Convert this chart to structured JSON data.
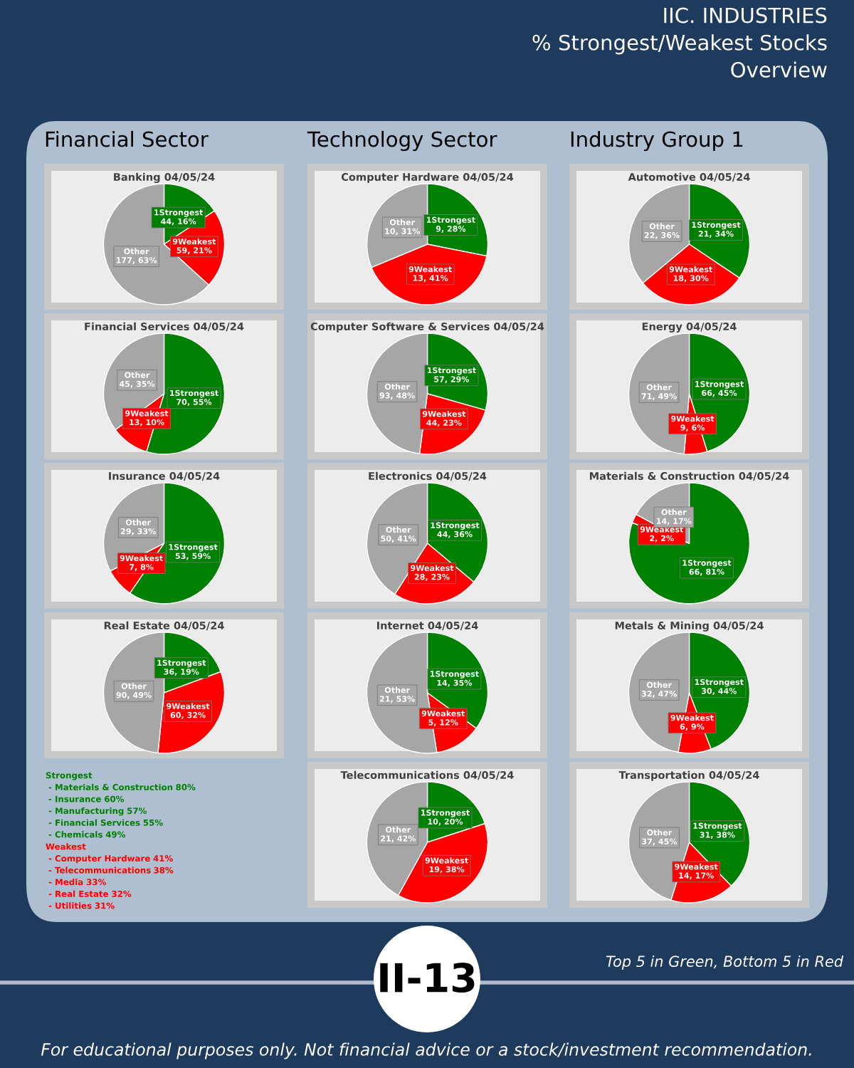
{
  "chart_data": [
    {
      "type": "other",
      "title": "IIC. INDUSTRIES\n% Strongest/Weakest Stocks\nOverview",
      "annotations": [
        "II-13",
        "Top 5 in Green, Bottom 5 in Red",
        "For educational purposes only. Not financial advice or a stock/investment recommendation."
      ]
    },
    {
      "type": "pie",
      "subtitle": "Financial Sector",
      "title": "Banking 04/05/24",
      "categories": [
        "1Strongest",
        "9Weakest",
        "Other"
      ],
      "values": [
        44,
        59,
        177
      ],
      "colors": [
        "#008000",
        "#ff0000",
        "#a6a6a6"
      ],
      "value_labels": [
        "44, 16%",
        "59, 21%",
        "177, 63%"
      ]
    },
    {
      "type": "pie",
      "title": "Financial Services 04/05/24",
      "categories": [
        "1Strongest",
        "9Weakest",
        "Other"
      ],
      "values": [
        70,
        13,
        45
      ],
      "colors": [
        "#008000",
        "#ff0000",
        "#a6a6a6"
      ],
      "value_labels": [
        "70, 55%",
        "13, 10%",
        "45, 35%"
      ]
    },
    {
      "type": "pie",
      "title": "Insurance 04/05/24",
      "categories": [
        "1Strongest",
        "9Weakest",
        "Other"
      ],
      "values": [
        53,
        7,
        29
      ],
      "colors": [
        "#008000",
        "#ff0000",
        "#a6a6a6"
      ],
      "value_labels": [
        "53, 59%",
        "7, 8%",
        "29, 33%"
      ]
    },
    {
      "type": "pie",
      "title": "Real Estate 04/05/24",
      "categories": [
        "1Strongest",
        "9Weakest",
        "Other"
      ],
      "values": [
        36,
        60,
        90
      ],
      "colors": [
        "#008000",
        "#ff0000",
        "#a6a6a6"
      ],
      "value_labels": [
        "36, 19%",
        "60, 32%",
        "90, 49%"
      ]
    },
    {
      "type": "other",
      "categories": [
        "- Materials & Construction",
        "- Insurance",
        "- Manufacturing",
        "- Financial Services",
        "- Chemicals"
      ],
      "series": [
        {
          "name": "Strongest",
          "color": "#008000",
          "values": [
            80,
            60,
            57,
            55,
            49
          ],
          "value_labels": [
            "80%",
            "60%",
            "57%",
            "55%",
            "49%"
          ]
        }
      ]
    },
    {
      "type": "other",
      "categories": [
        "- Computer Hardware",
        "- Telecommunications",
        "- Media",
        "- Real Estate",
        "- Utilities"
      ],
      "series": [
        {
          "name": "Weakest",
          "color": "#ff0000",
          "values": [
            41,
            38,
            33,
            32,
            31
          ],
          "value_labels": [
            "41%",
            "38%",
            "33%",
            "32%",
            "31%"
          ]
        }
      ]
    },
    {
      "type": "pie",
      "subtitle": "Technology Sector",
      "title": "Computer Hardware 04/05/24",
      "categories": [
        "1Strongest",
        "9Weakest",
        "Other"
      ],
      "values": [
        9,
        13,
        10
      ],
      "colors": [
        "#008000",
        "#ff0000",
        "#a6a6a6"
      ],
      "value_labels": [
        "9, 28%",
        "13, 41%",
        "10, 31%"
      ]
    },
    {
      "type": "pie",
      "title": "Computer Software & Services 04/05/24",
      "categories": [
        "1Strongest",
        "9Weakest",
        "Other"
      ],
      "values": [
        57,
        44,
        93
      ],
      "colors": [
        "#008000",
        "#ff0000",
        "#a6a6a6"
      ],
      "value_labels": [
        "57, 29%",
        "44, 23%",
        "93, 48%"
      ]
    },
    {
      "type": "pie",
      "title": "Electronics 04/05/24",
      "categories": [
        "1Strongest",
        "9Weakest",
        "Other"
      ],
      "values": [
        44,
        28,
        50
      ],
      "colors": [
        "#008000",
        "#ff0000",
        "#a6a6a6"
      ],
      "value_labels": [
        "44, 36%",
        "28, 23%",
        "50, 41%"
      ]
    },
    {
      "type": "pie",
      "title": "Internet 04/05/24",
      "categories": [
        "1Strongest",
        "9Weakest",
        "Other"
      ],
      "values": [
        14,
        5,
        21
      ],
      "colors": [
        "#008000",
        "#ff0000",
        "#a6a6a6"
      ],
      "value_labels": [
        "14, 35%",
        "5, 12%",
        "21, 53%"
      ]
    },
    {
      "type": "pie",
      "title": "Telecommunications 04/05/24",
      "categories": [
        "1Strongest",
        "9Weakest",
        "Other"
      ],
      "values": [
        10,
        19,
        21
      ],
      "colors": [
        "#008000",
        "#ff0000",
        "#a6a6a6"
      ],
      "value_labels": [
        "10, 20%",
        "19, 38%",
        "21, 42%"
      ]
    },
    {
      "type": "pie",
      "subtitle": "Industry Group 1",
      "title": "Automotive 04/05/24",
      "categories": [
        "1Strongest",
        "9Weakest",
        "Other"
      ],
      "values": [
        21,
        18,
        22
      ],
      "colors": [
        "#008000",
        "#ff0000",
        "#a6a6a6"
      ],
      "value_labels": [
        "21, 34%",
        "18, 30%",
        "22, 36%"
      ]
    },
    {
      "type": "pie",
      "title": "Energy 04/05/24",
      "categories": [
        "1Strongest",
        "9Weakest",
        "Other"
      ],
      "values": [
        66,
        9,
        71
      ],
      "colors": [
        "#008000",
        "#ff0000",
        "#a6a6a6"
      ],
      "value_labels": [
        "66, 45%",
        "9, 6%",
        "71, 49%"
      ]
    },
    {
      "type": "pie",
      "title": "Materials & Construction 04/05/24",
      "categories": [
        "1Strongest",
        "9Weakest",
        "Other"
      ],
      "values": [
        66,
        2,
        14
      ],
      "colors": [
        "#008000",
        "#ff0000",
        "#a6a6a6"
      ],
      "value_labels": [
        "66, 81%",
        "2, 2%",
        "14, 17%"
      ]
    },
    {
      "type": "pie",
      "title": "Metals & Mining 04/05/24",
      "categories": [
        "1Strongest",
        "9Weakest",
        "Other"
      ],
      "values": [
        30,
        6,
        32
      ],
      "colors": [
        "#008000",
        "#ff0000",
        "#a6a6a6"
      ],
      "value_labels": [
        "30, 44%",
        "6, 9%",
        "32, 47%"
      ]
    },
    {
      "type": "pie",
      "title": "Transportation 04/05/24",
      "categories": [
        "1Strongest",
        "9Weakest",
        "Other"
      ],
      "values": [
        31,
        14,
        37
      ],
      "colors": [
        "#008000",
        "#ff0000",
        "#a6a6a6"
      ],
      "value_labels": [
        "31, 38%",
        "14, 17%",
        "37, 45%"
      ]
    }
  ]
}
